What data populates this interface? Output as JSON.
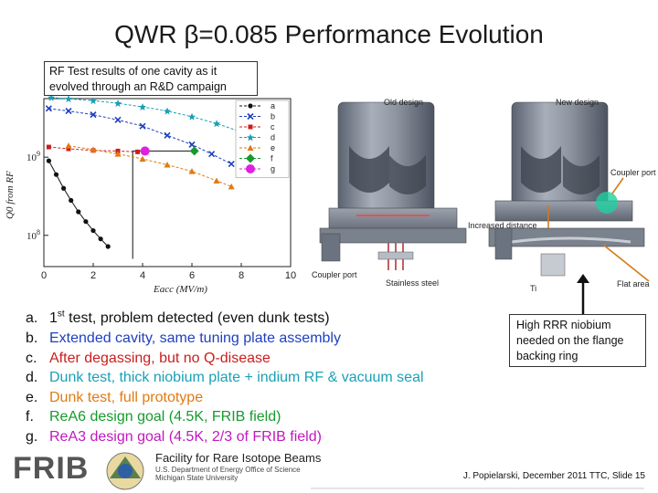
{
  "title": "QWR β=0.085 Performance Evolution",
  "caption": "RF Test results of one cavity as it evolved through an R&D campaign",
  "legend_items": [
    "a",
    "b",
    "c",
    "d",
    "e",
    "f",
    "g"
  ],
  "list": [
    {
      "letter": "a.",
      "pre": "1",
      "sup": "st",
      "text": " test, problem detected (even dunk tests)",
      "color": "#111111"
    },
    {
      "letter": "b.",
      "pre": "",
      "sup": "",
      "text": "Extended cavity, same tuning plate assembly",
      "color": "#1f3fbf"
    },
    {
      "letter": "c.",
      "pre": "",
      "sup": "",
      "text": "After degassing, but no Q-disease",
      "color": "#cc1d1d"
    },
    {
      "letter": "d.",
      "pre": "",
      "sup": "",
      "text": "Dunk test, thick niobium plate + indium RF & vacuum seal",
      "color": "#1aa0b5"
    },
    {
      "letter": "e.",
      "pre": "",
      "sup": "",
      "text": "Dunk test, full prototype",
      "color": "#e07a12"
    },
    {
      "letter": "f.",
      "pre": "",
      "sup": "",
      "text": "ReA6 design goal (4.5K, FRIB field)",
      "color": "#169a2e"
    },
    {
      "letter": "g.",
      "pre": "",
      "sup": "",
      "text": "ReA3 design goal (4.5K, 2/3 of FRIB field)",
      "color": "#c019c0"
    }
  ],
  "designs": {
    "old": "Old design",
    "new": "New design",
    "coupler_port": "Coupler port",
    "coupler_port_right": "Coupler port",
    "increased": "Increased distance",
    "stainless": "Stainless steel",
    "ti": "Ti",
    "flat": "Flat area"
  },
  "note": "High RRR niobium needed on the flange backing ring",
  "footer": {
    "logo": "FRIB",
    "org": "Facility for Rare Isotope Beams",
    "sub1": "U.S. Department of Energy Office of Science",
    "sub2": "Michigan State University",
    "ref": "J. Popielarski, December 2011 TTC, Slide 15"
  },
  "chart_data": {
    "type": "scatter",
    "title": "",
    "xlabel": "Eacc (MV/m)",
    "ylabel": "Q0 from RF",
    "xlim": [
      0,
      10
    ],
    "ylim_log10": [
      7.6,
      9.75
    ],
    "xticks": [
      "0",
      "2",
      "4",
      "6",
      "8",
      "10"
    ],
    "yticks": [
      "10^8",
      "10^9"
    ],
    "log_y": true,
    "grid": false,
    "legend_placement": "top-right",
    "series": [
      {
        "name": "a",
        "color": "#111111",
        "marker": "dot",
        "x": [
          0.2,
          0.5,
          0.8,
          1.1,
          1.4,
          1.7,
          2.0,
          2.3,
          2.6
        ],
        "y": [
          900000000.0,
          600000000.0,
          400000000.0,
          280000000.0,
          200000000.0,
          150000000.0,
          115000000.0,
          90000000.0,
          72000000.0
        ]
      },
      {
        "name": "b",
        "color": "#1f3fbf",
        "marker": "x",
        "x": [
          0.2,
          1,
          2,
          3,
          4,
          5,
          6,
          6.8,
          7.6
        ],
        "y": [
          4200000000.0,
          3900000000.0,
          3500000000.0,
          3000000000.0,
          2500000000.0,
          1900000000.0,
          1450000000.0,
          1100000000.0,
          820000000.0
        ]
      },
      {
        "name": "c",
        "color": "#cc1d1d",
        "marker": "square",
        "x": [
          0.2,
          1,
          2,
          3,
          3.8
        ],
        "y": [
          1350000000.0,
          1280000000.0,
          1220000000.0,
          1200000000.0,
          1170000000.0
        ]
      },
      {
        "name": "d",
        "color": "#1aa0b5",
        "marker": "star",
        "x": [
          0.3,
          1,
          2,
          3,
          4,
          5,
          6,
          7,
          8,
          9
        ],
        "y": [
          5800000000.0,
          5600000000.0,
          5300000000.0,
          4900000000.0,
          4400000000.0,
          3900000000.0,
          3300000000.0,
          2700000000.0,
          2100000000.0,
          1600000000.0
        ]
      },
      {
        "name": "e",
        "color": "#e07a12",
        "marker": "triangle",
        "x": [
          1,
          2,
          3,
          4,
          5,
          6,
          7,
          7.6
        ],
        "y": [
          1400000000.0,
          1250000000.0,
          1100000000.0,
          950000000.0,
          800000000.0,
          660000000.0,
          500000000.0,
          420000000.0
        ]
      },
      {
        "name": "f",
        "color": "#169a2e",
        "marker": "diamond",
        "x": [
          6.1
        ],
        "y": [
          1200000000.0
        ]
      },
      {
        "name": "g",
        "color": "#e020e0",
        "marker": "circle",
        "x": [
          4.1
        ],
        "y": [
          1200000000.0
        ]
      }
    ],
    "guide_lines": [
      {
        "x": [
          3.6,
          3.6,
          6.1
        ],
        "y": [
          50000000.0,
          1200000000.0,
          1200000000.0
        ]
      }
    ]
  }
}
